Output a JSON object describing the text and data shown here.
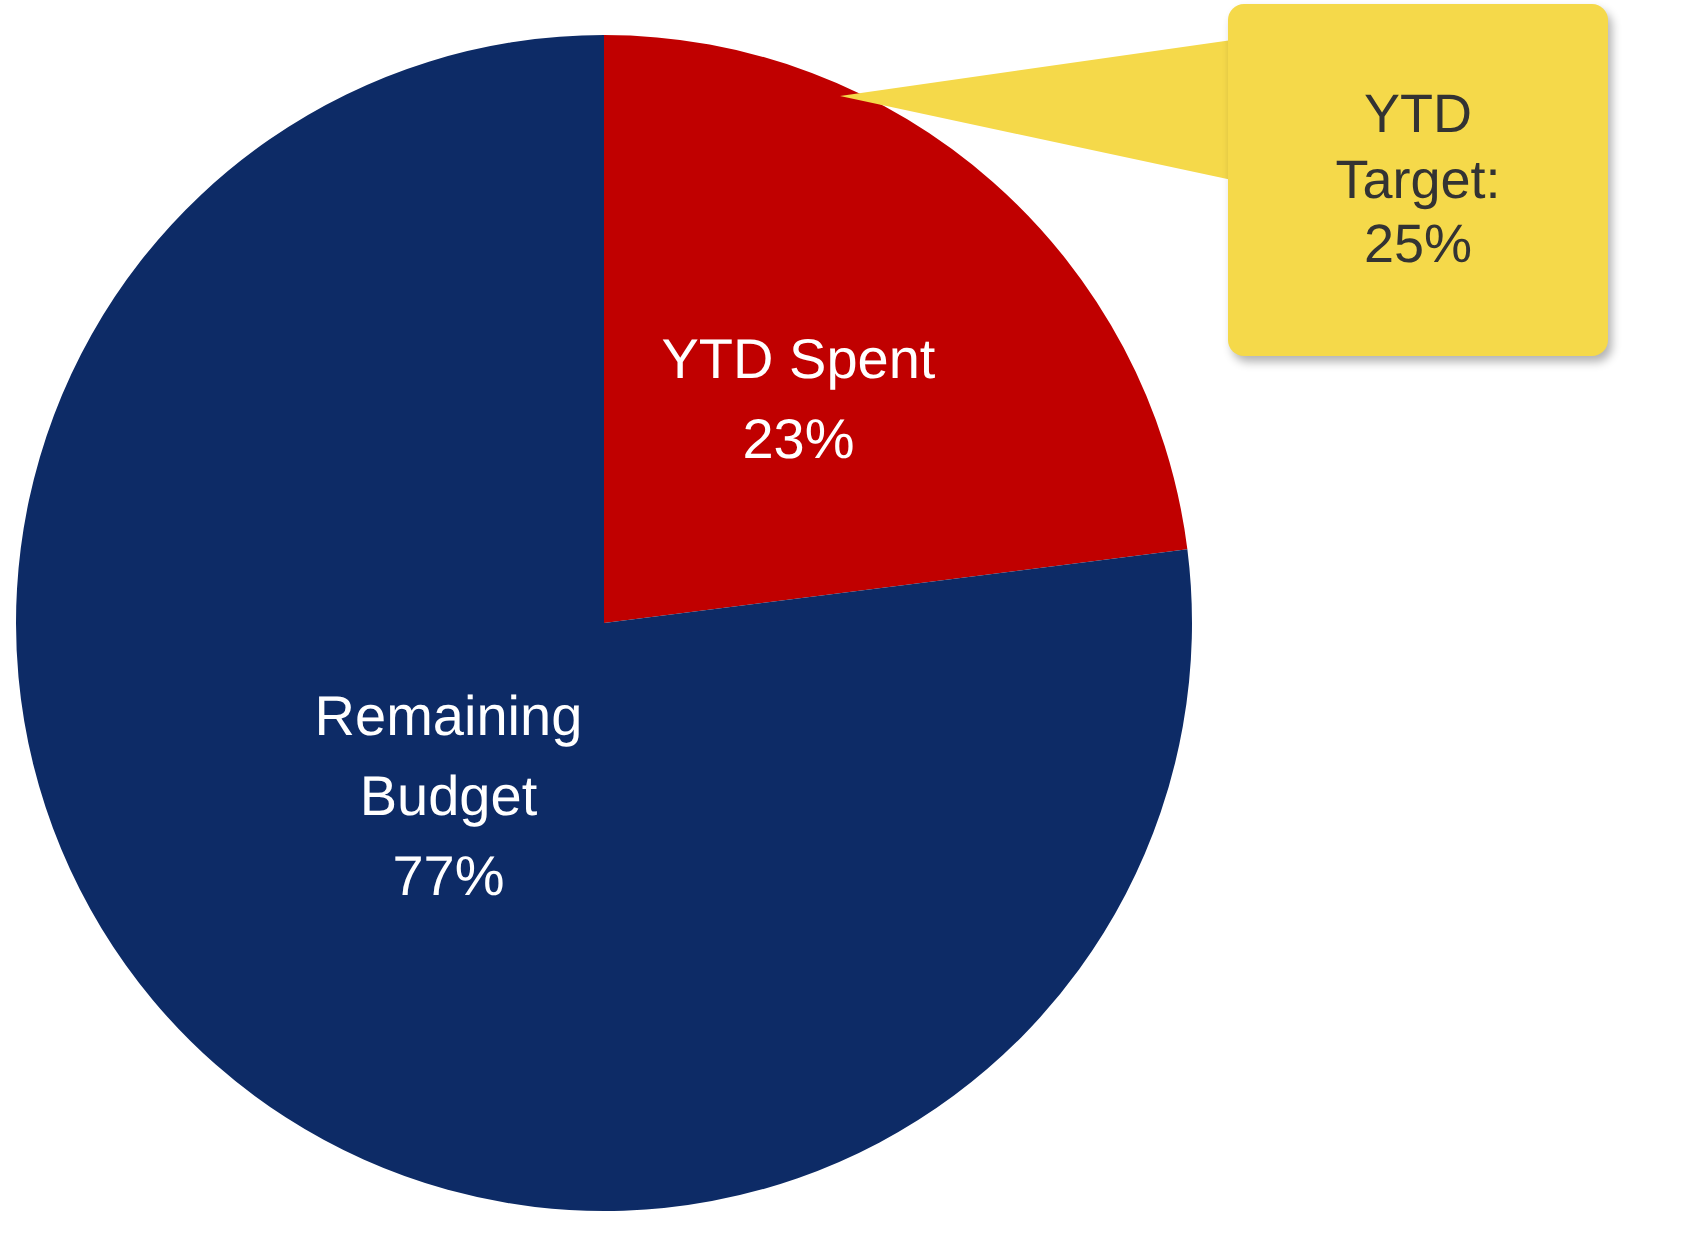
{
  "chart_data": {
    "type": "pie",
    "categories": [
      "YTD Spent",
      "Remaining Budget"
    ],
    "values": [
      23,
      77
    ],
    "value_labels": [
      "23%",
      "77%"
    ],
    "colors": [
      "#c00000",
      "#0d2b66"
    ],
    "annotations": [
      "YTD Target: 25%"
    ],
    "legend": false
  }
}
